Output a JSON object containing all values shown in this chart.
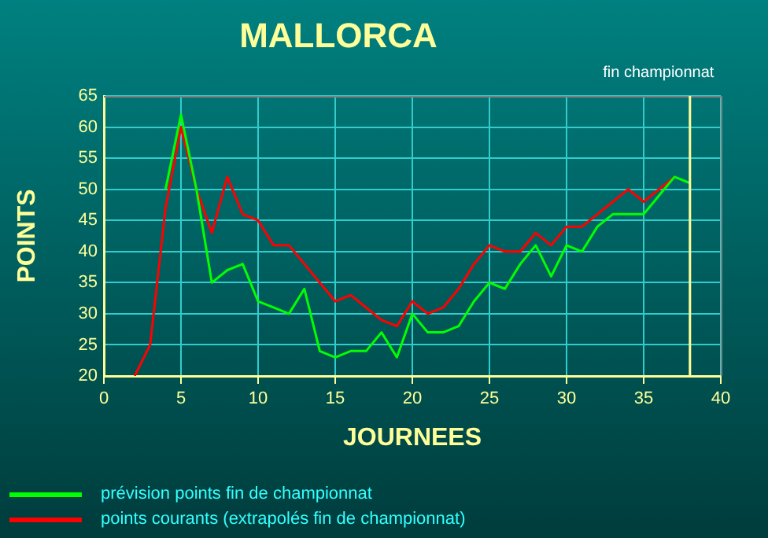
{
  "chart_data": {
    "type": "line",
    "title": "MALLORCA",
    "xlabel": "JOURNEES",
    "ylabel": "POINTS",
    "x": [
      2,
      3,
      4,
      5,
      6,
      7,
      8,
      9,
      10,
      11,
      12,
      13,
      14,
      15,
      16,
      17,
      18,
      19,
      20,
      21,
      22,
      23,
      24,
      25,
      26,
      27,
      28,
      29,
      30,
      31,
      32,
      33,
      34,
      35,
      36,
      37,
      38
    ],
    "series": [
      {
        "name": "prévision points fin de championnat",
        "color": "#00ff00",
        "values": [
          null,
          null,
          50,
          62,
          50,
          35,
          37,
          38,
          32,
          31,
          30,
          34,
          24,
          23,
          24,
          24,
          27,
          23,
          30,
          27,
          27,
          28,
          32,
          35,
          34,
          38,
          41,
          36,
          41,
          40,
          44,
          46,
          46,
          46,
          49,
          52,
          51
        ]
      },
      {
        "name": "points courants (extrapolés fin de championnat)",
        "color": "#ff0000",
        "values": [
          20,
          25,
          47,
          60,
          50,
          43,
          52,
          46,
          45,
          41,
          41,
          38,
          35,
          32,
          33,
          31,
          29,
          28,
          32,
          30,
          31,
          34,
          38,
          41,
          40,
          40,
          43,
          41,
          44,
          44,
          46,
          48,
          50,
          48,
          50,
          52,
          null
        ]
      }
    ],
    "xlim": [
      0,
      40
    ],
    "xticks": [
      0,
      5,
      10,
      15,
      20,
      25,
      30,
      35,
      40
    ],
    "ylim": [
      20,
      65
    ],
    "yticks": [
      20,
      25,
      30,
      35,
      40,
      45,
      50,
      55,
      60,
      65
    ],
    "grid": true,
    "legend": "bottom",
    "marker": "none",
    "line_style": "solid",
    "ref_lines": [
      {
        "axis": "x",
        "value": 38,
        "label": "fin championnat",
        "color": "#ffff99"
      }
    ]
  }
}
